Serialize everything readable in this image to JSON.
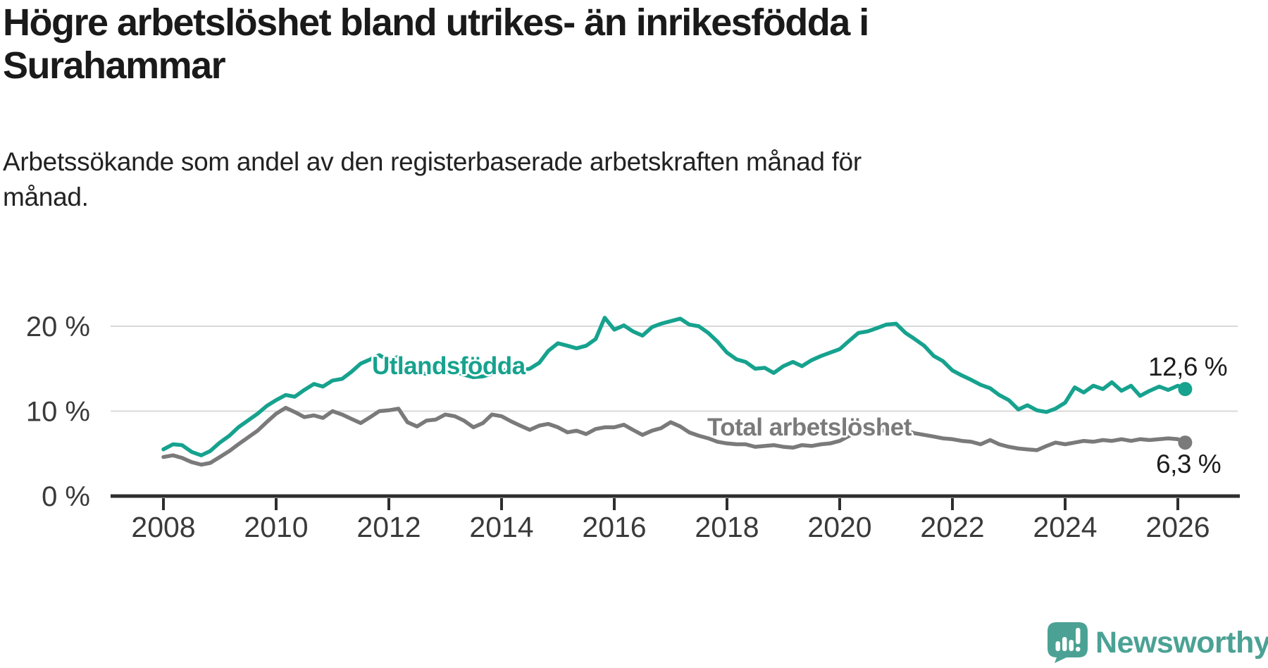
{
  "header": {
    "title_line1": "Högre arbetslöshet bland utrikes- än inrikesfödda i",
    "title_line2": "Surahammar",
    "subtitle_line1": "Arbetssökande som andel av den registerbaserade arbetskraften månad för",
    "subtitle_line2": "månad."
  },
  "colors": {
    "background": "#FFFFFF",
    "title": "#1A1A1A",
    "subtitle": "#222222",
    "foreign_born_line": "#16A28E",
    "total_line": "#7A7A7A",
    "axis": "#2E2E2E",
    "grid": "#D9D9D9",
    "tick_label": "#3A3A3A",
    "end_label": "#1C1C1C",
    "logo_teal": "#4BA294"
  },
  "chart_data": {
    "type": "line",
    "title": "Högre arbetslöshet bland utrikes- än inrikesfödda i Surahammar",
    "subtitle": "Arbetssökande som andel av den registerbaserade arbetskraften månad för månad.",
    "xlabel": "",
    "ylabel": "",
    "grid": "horizontal",
    "legend_position": "inline-labels",
    "xlim": [
      2007.06,
      2027.06
    ],
    "ylim": [
      0,
      22.2
    ],
    "x_ticks": [
      2008,
      2010,
      2012,
      2014,
      2016,
      2018,
      2020,
      2022,
      2024,
      2026
    ],
    "y_ticks": [
      {
        "value": 0,
        "label": "0 %"
      },
      {
        "value": 10,
        "label": "10 %"
      },
      {
        "value": 20,
        "label": "20 %"
      }
    ],
    "series": [
      {
        "name": "Utlandsfödda",
        "color": "#16A28E",
        "end_label": "12,6 %",
        "end_value": 12.6,
        "points": [
          [
            2008.0,
            5.5
          ],
          [
            2008.17,
            6.1
          ],
          [
            2008.33,
            6.0
          ],
          [
            2008.5,
            5.2
          ],
          [
            2008.67,
            4.8
          ],
          [
            2008.83,
            5.3
          ],
          [
            2009.0,
            6.3
          ],
          [
            2009.17,
            7.1
          ],
          [
            2009.33,
            8.1
          ],
          [
            2009.5,
            8.9
          ],
          [
            2009.67,
            9.7
          ],
          [
            2009.83,
            10.6
          ],
          [
            2010.0,
            11.3
          ],
          [
            2010.17,
            11.9
          ],
          [
            2010.33,
            11.7
          ],
          [
            2010.5,
            12.5
          ],
          [
            2010.67,
            13.2
          ],
          [
            2010.83,
            12.9
          ],
          [
            2011.0,
            13.6
          ],
          [
            2011.17,
            13.8
          ],
          [
            2011.33,
            14.6
          ],
          [
            2011.5,
            15.6
          ],
          [
            2011.67,
            16.1
          ],
          [
            2011.83,
            16.6
          ],
          [
            2012.0,
            16.0
          ],
          [
            2012.17,
            16.4
          ],
          [
            2012.33,
            15.2
          ],
          [
            2012.5,
            14.5
          ],
          [
            2012.67,
            14.4
          ],
          [
            2012.83,
            14.8
          ],
          [
            2013.0,
            14.5
          ],
          [
            2013.17,
            14.7
          ],
          [
            2013.33,
            14.3
          ],
          [
            2013.5,
            14.0
          ],
          [
            2013.67,
            14.1
          ],
          [
            2013.83,
            14.4
          ],
          [
            2014.0,
            14.7
          ],
          [
            2014.17,
            15.1
          ],
          [
            2014.33,
            14.8
          ],
          [
            2014.5,
            15.0
          ],
          [
            2014.67,
            15.7
          ],
          [
            2014.83,
            17.1
          ],
          [
            2015.0,
            18.0
          ],
          [
            2015.17,
            17.7
          ],
          [
            2015.33,
            17.4
          ],
          [
            2015.5,
            17.7
          ],
          [
            2015.67,
            18.5
          ],
          [
            2015.83,
            21.0
          ],
          [
            2016.0,
            19.6
          ],
          [
            2016.17,
            20.1
          ],
          [
            2016.33,
            19.4
          ],
          [
            2016.5,
            18.9
          ],
          [
            2016.67,
            19.9
          ],
          [
            2016.83,
            20.3
          ],
          [
            2017.0,
            20.6
          ],
          [
            2017.17,
            20.9
          ],
          [
            2017.33,
            20.2
          ],
          [
            2017.5,
            20.0
          ],
          [
            2017.67,
            19.2
          ],
          [
            2017.83,
            18.2
          ],
          [
            2018.0,
            16.9
          ],
          [
            2018.17,
            16.1
          ],
          [
            2018.33,
            15.8
          ],
          [
            2018.5,
            15.0
          ],
          [
            2018.67,
            15.1
          ],
          [
            2018.83,
            14.5
          ],
          [
            2019.0,
            15.3
          ],
          [
            2019.17,
            15.8
          ],
          [
            2019.33,
            15.3
          ],
          [
            2019.5,
            16.0
          ],
          [
            2019.67,
            16.5
          ],
          [
            2019.83,
            16.9
          ],
          [
            2020.0,
            17.3
          ],
          [
            2020.17,
            18.3
          ],
          [
            2020.33,
            19.2
          ],
          [
            2020.5,
            19.4
          ],
          [
            2020.67,
            19.8
          ],
          [
            2020.83,
            20.2
          ],
          [
            2021.0,
            20.3
          ],
          [
            2021.17,
            19.2
          ],
          [
            2021.33,
            18.5
          ],
          [
            2021.5,
            17.7
          ],
          [
            2021.67,
            16.5
          ],
          [
            2021.83,
            15.9
          ],
          [
            2022.0,
            14.8
          ],
          [
            2022.17,
            14.2
          ],
          [
            2022.33,
            13.7
          ],
          [
            2022.5,
            13.1
          ],
          [
            2022.67,
            12.7
          ],
          [
            2022.83,
            11.9
          ],
          [
            2023.0,
            11.3
          ],
          [
            2023.17,
            10.2
          ],
          [
            2023.33,
            10.7
          ],
          [
            2023.5,
            10.1
          ],
          [
            2023.67,
            9.9
          ],
          [
            2023.83,
            10.3
          ],
          [
            2024.0,
            11.0
          ],
          [
            2024.17,
            12.8
          ],
          [
            2024.33,
            12.2
          ],
          [
            2024.5,
            13.0
          ],
          [
            2024.67,
            12.6
          ],
          [
            2024.83,
            13.4
          ],
          [
            2025.0,
            12.4
          ],
          [
            2025.17,
            13.0
          ],
          [
            2025.33,
            11.8
          ],
          [
            2025.5,
            12.4
          ],
          [
            2025.67,
            12.9
          ],
          [
            2025.83,
            12.5
          ],
          [
            2026.0,
            13.0
          ],
          [
            2026.13,
            12.6
          ]
        ]
      },
      {
        "name": "Total arbetslöshet",
        "color": "#7A7A7A",
        "end_label": "6,3 %",
        "end_value": 6.3,
        "points": [
          [
            2008.0,
            4.6
          ],
          [
            2008.17,
            4.8
          ],
          [
            2008.33,
            4.5
          ],
          [
            2008.5,
            4.0
          ],
          [
            2008.67,
            3.7
          ],
          [
            2008.83,
            3.9
          ],
          [
            2009.0,
            4.6
          ],
          [
            2009.17,
            5.3
          ],
          [
            2009.33,
            6.1
          ],
          [
            2009.5,
            6.9
          ],
          [
            2009.67,
            7.7
          ],
          [
            2009.83,
            8.7
          ],
          [
            2010.0,
            9.7
          ],
          [
            2010.17,
            10.4
          ],
          [
            2010.33,
            9.9
          ],
          [
            2010.5,
            9.3
          ],
          [
            2010.67,
            9.5
          ],
          [
            2010.83,
            9.2
          ],
          [
            2011.0,
            10.0
          ],
          [
            2011.17,
            9.6
          ],
          [
            2011.33,
            9.1
          ],
          [
            2011.5,
            8.6
          ],
          [
            2011.67,
            9.3
          ],
          [
            2011.83,
            10.0
          ],
          [
            2012.0,
            10.1
          ],
          [
            2012.17,
            10.3
          ],
          [
            2012.33,
            8.7
          ],
          [
            2012.5,
            8.2
          ],
          [
            2012.67,
            8.9
          ],
          [
            2012.83,
            9.0
          ],
          [
            2013.0,
            9.6
          ],
          [
            2013.17,
            9.4
          ],
          [
            2013.33,
            8.9
          ],
          [
            2013.5,
            8.1
          ],
          [
            2013.67,
            8.6
          ],
          [
            2013.83,
            9.6
          ],
          [
            2014.0,
            9.4
          ],
          [
            2014.17,
            8.8
          ],
          [
            2014.33,
            8.3
          ],
          [
            2014.5,
            7.8
          ],
          [
            2014.67,
            8.3
          ],
          [
            2014.83,
            8.5
          ],
          [
            2015.0,
            8.1
          ],
          [
            2015.17,
            7.5
          ],
          [
            2015.33,
            7.7
          ],
          [
            2015.5,
            7.3
          ],
          [
            2015.67,
            7.9
          ],
          [
            2015.83,
            8.1
          ],
          [
            2016.0,
            8.1
          ],
          [
            2016.17,
            8.4
          ],
          [
            2016.33,
            7.8
          ],
          [
            2016.5,
            7.2
          ],
          [
            2016.67,
            7.7
          ],
          [
            2016.83,
            8.0
          ],
          [
            2017.0,
            8.7
          ],
          [
            2017.17,
            8.2
          ],
          [
            2017.33,
            7.5
          ],
          [
            2017.5,
            7.1
          ],
          [
            2017.67,
            6.8
          ],
          [
            2017.83,
            6.4
          ],
          [
            2018.0,
            6.2
          ],
          [
            2018.17,
            6.1
          ],
          [
            2018.33,
            6.1
          ],
          [
            2018.5,
            5.8
          ],
          [
            2018.67,
            5.9
          ],
          [
            2018.83,
            6.0
          ],
          [
            2019.0,
            5.8
          ],
          [
            2019.17,
            5.7
          ],
          [
            2019.33,
            6.0
          ],
          [
            2019.5,
            5.9
          ],
          [
            2019.67,
            6.1
          ],
          [
            2019.83,
            6.2
          ],
          [
            2020.0,
            6.5
          ],
          [
            2020.17,
            7.1
          ],
          [
            2020.33,
            7.5
          ],
          [
            2020.5,
            7.7
          ],
          [
            2020.67,
            7.6
          ],
          [
            2020.83,
            7.8
          ],
          [
            2021.0,
            7.9
          ],
          [
            2021.17,
            7.7
          ],
          [
            2021.33,
            7.4
          ],
          [
            2021.5,
            7.2
          ],
          [
            2021.67,
            7.0
          ],
          [
            2021.83,
            6.8
          ],
          [
            2022.0,
            6.7
          ],
          [
            2022.17,
            6.5
          ],
          [
            2022.33,
            6.4
          ],
          [
            2022.5,
            6.1
          ],
          [
            2022.67,
            6.6
          ],
          [
            2022.83,
            6.1
          ],
          [
            2023.0,
            5.8
          ],
          [
            2023.17,
            5.6
          ],
          [
            2023.33,
            5.5
          ],
          [
            2023.5,
            5.4
          ],
          [
            2023.67,
            5.9
          ],
          [
            2023.83,
            6.3
          ],
          [
            2024.0,
            6.1
          ],
          [
            2024.17,
            6.3
          ],
          [
            2024.33,
            6.5
          ],
          [
            2024.5,
            6.4
          ],
          [
            2024.67,
            6.6
          ],
          [
            2024.83,
            6.5
          ],
          [
            2025.0,
            6.7
          ],
          [
            2025.17,
            6.5
          ],
          [
            2025.33,
            6.7
          ],
          [
            2025.5,
            6.6
          ],
          [
            2025.67,
            6.7
          ],
          [
            2025.83,
            6.8
          ],
          [
            2026.0,
            6.7
          ],
          [
            2026.13,
            6.3
          ]
        ]
      }
    ]
  },
  "logo": {
    "text": "Newsworthy"
  }
}
